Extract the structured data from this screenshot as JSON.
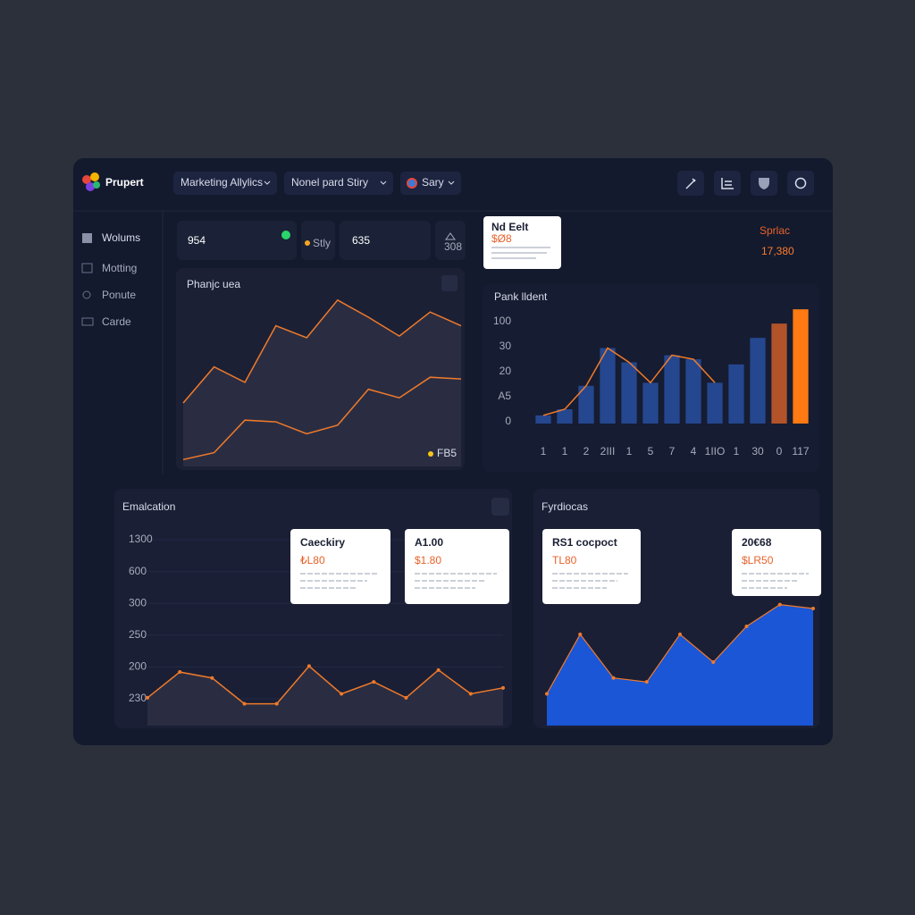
{
  "header": {
    "brand": "Prupert",
    "menus": [
      "Marketing Allylics",
      "Nonel pard Stiry",
      "Sary"
    ]
  },
  "sidebar": [
    "Wolums",
    "Motting",
    "Ponute",
    "Carde"
  ],
  "stats": [
    954,
    "Stly",
    635,
    "308"
  ],
  "popup": {
    "title": "Nd Eelt",
    "value": "$Ø8"
  },
  "summary": {
    "label": "Sprlac",
    "value": "17,380"
  },
  "charts": [
    {
      "type": "area_lines",
      "title": "Phanjc uea",
      "legend": "FB5",
      "legend_color": "#f5c518",
      "ylim": [
        0,
        100
      ],
      "series": [
        {
          "color": "#f07a2a",
          "values": [
            37,
            58,
            49,
            82,
            75,
            97,
            87,
            76,
            90,
            82
          ]
        },
        {
          "color": "#f07a2a",
          "values": [
            4,
            8,
            27,
            26,
            19,
            24,
            45,
            40,
            52,
            51
          ]
        }
      ]
    },
    {
      "type": "bar",
      "title": "Pank lldent",
      "ylim": [
        0,
        120
      ],
      "axis_labels": [
        "100",
        "30",
        "20",
        "A5",
        "0"
      ],
      "categories": [
        "1",
        "1",
        "2",
        "2III",
        "1",
        "5",
        "7",
        "4",
        "1IIO",
        "1",
        "30",
        "0",
        "117"
      ],
      "values": [
        8,
        14,
        37,
        74,
        60,
        40,
        67,
        63,
        40,
        58,
        84,
        98,
        112
      ],
      "colors": [
        "#24478f",
        "#24478f",
        "#24478f",
        "#24478f",
        "#24478f",
        "#24478f",
        "#24478f",
        "#24478f",
        "#24478f",
        "#24478f",
        "#24478f",
        "#b2532a",
        "#ff7a12"
      ],
      "line_color": "#f07a2a"
    },
    {
      "type": "line",
      "title": "Emalcation",
      "ylim": [
        0,
        100
      ],
      "color": "#f07a2a",
      "axis_labels": [
        "1300",
        "600",
        "300",
        "250",
        "200",
        "230"
      ],
      "values": [
        14,
        27,
        24,
        11,
        11,
        30,
        16,
        22,
        14,
        28,
        16,
        19
      ],
      "cards": [
        {
          "title": "Caeckiry",
          "value": "₺L80"
        },
        {
          "title": "A1.00",
          "value": "$1.80"
        }
      ]
    },
    {
      "type": "area",
      "title": "Fyrdiocas",
      "ylim": [
        0,
        100
      ],
      "color": "#1a56d6",
      "line_color": "#f07a2a",
      "values": [
        16,
        46,
        24,
        22,
        46,
        32,
        50,
        61,
        59
      ],
      "cards": [
        {
          "title": "RS1 cocpoct",
          "value": "TL80"
        },
        {
          "title": "20€68",
          "value": "$LR50"
        }
      ]
    }
  ]
}
